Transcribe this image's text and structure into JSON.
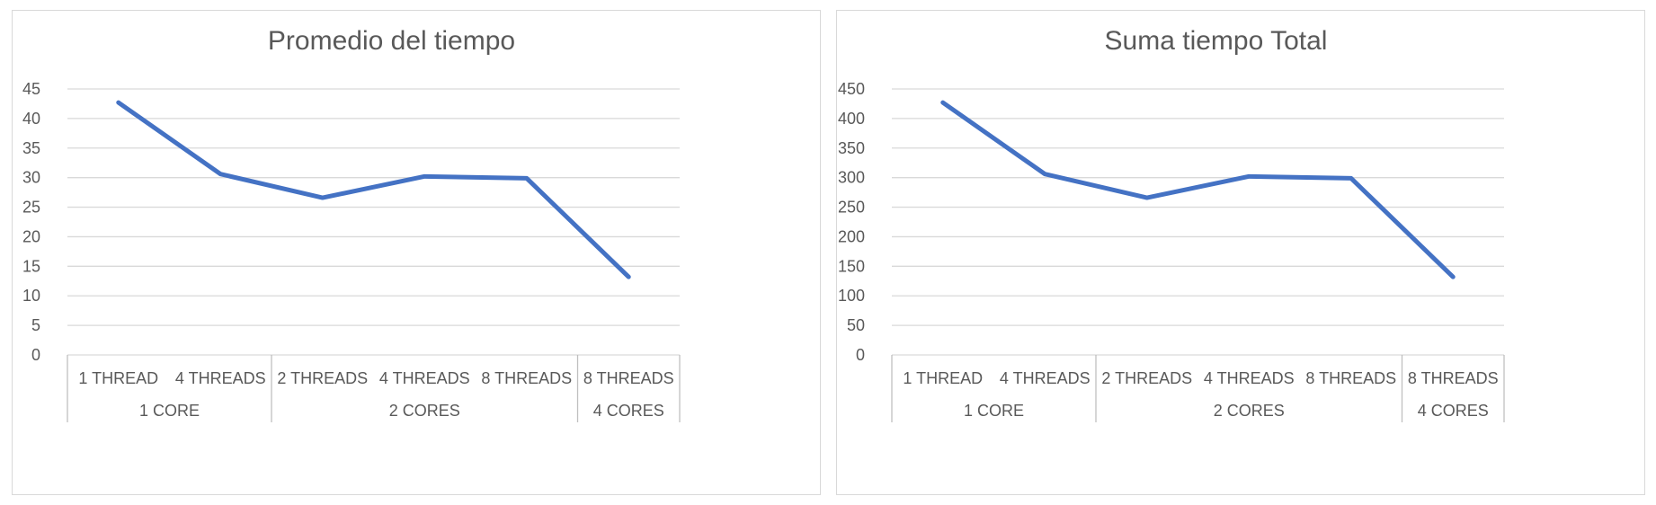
{
  "chart_data": [
    {
      "type": "line",
      "title": "Promedio del tiempo",
      "xlabel": "",
      "ylabel": "",
      "ylim": [
        0,
        45
      ],
      "yticks": [
        "0",
        "5",
        "10",
        "15",
        "20",
        "25",
        "30",
        "35",
        "40",
        "45"
      ],
      "grid": true,
      "legend": "none",
      "categories": [
        "1 THREAD",
        "4 THREADS",
        "2 THREADS",
        "4 THREADS",
        "8 THREADS",
        "8 THREADS"
      ],
      "groups": [
        {
          "label": "1 CORE",
          "span": 2
        },
        {
          "label": "2 CORES",
          "span": 3
        },
        {
          "label": "4 CORES",
          "span": 1
        }
      ],
      "series": [
        {
          "color": "#4472C4",
          "values": [
            42.7,
            30.6,
            26.6,
            30.2,
            29.9,
            13.2
          ]
        }
      ]
    },
    {
      "type": "line",
      "title": "Suma tiempo Total",
      "xlabel": "",
      "ylabel": "",
      "ylim": [
        0,
        450
      ],
      "yticks": [
        "0",
        "50",
        "100",
        "150",
        "200",
        "250",
        "300",
        "350",
        "400",
        "450"
      ],
      "grid": true,
      "legend": "none",
      "categories": [
        "1 THREAD",
        "4 THREADS",
        "2 THREADS",
        "4 THREADS",
        "8 THREADS",
        "8 THREADS"
      ],
      "groups": [
        {
          "label": "1 CORE",
          "span": 2
        },
        {
          "label": "2 CORES",
          "span": 3
        },
        {
          "label": "4 CORES",
          "span": 1
        }
      ],
      "series": [
        {
          "color": "#4472C4",
          "values": [
            427,
            306,
            266,
            302,
            299,
            132
          ]
        }
      ]
    }
  ]
}
